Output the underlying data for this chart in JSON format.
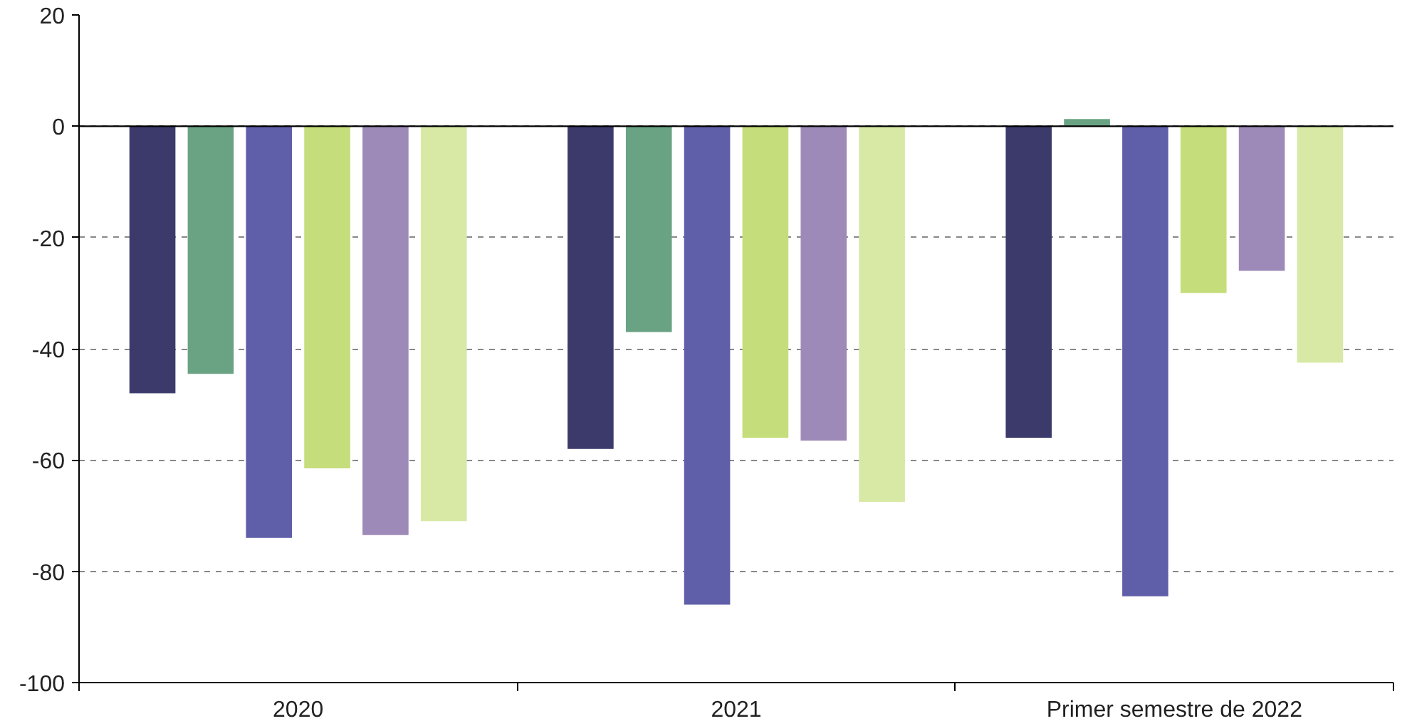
{
  "chart_data": {
    "type": "bar",
    "categories": [
      "2020",
      "2021",
      "Primer semestre de 2022"
    ],
    "series": [
      {
        "color": "#3b3a6b",
        "values": [
          -48,
          -58,
          -56
        ]
      },
      {
        "color": "#6aa383",
        "values": [
          -44.5,
          -37,
          1.3
        ]
      },
      {
        "color": "#5f5ea8",
        "values": [
          -74,
          -86,
          -84.5
        ]
      },
      {
        "color": "#c5dd7a",
        "values": [
          -61.5,
          -56,
          -30
        ]
      },
      {
        "color": "#9e8ab8",
        "values": [
          -73.5,
          -56.5,
          -26
        ]
      },
      {
        "color": "#d8e9a6",
        "values": [
          -71,
          -67.5,
          -42.5
        ]
      }
    ],
    "ylim": [
      -100,
      20
    ],
    "yticks": [
      -100,
      -80,
      -60,
      -40,
      -20,
      0,
      20
    ],
    "grid": "y",
    "ref_lines": [
      {
        "axis": "y",
        "value": 0,
        "color": "#000000"
      }
    ]
  }
}
